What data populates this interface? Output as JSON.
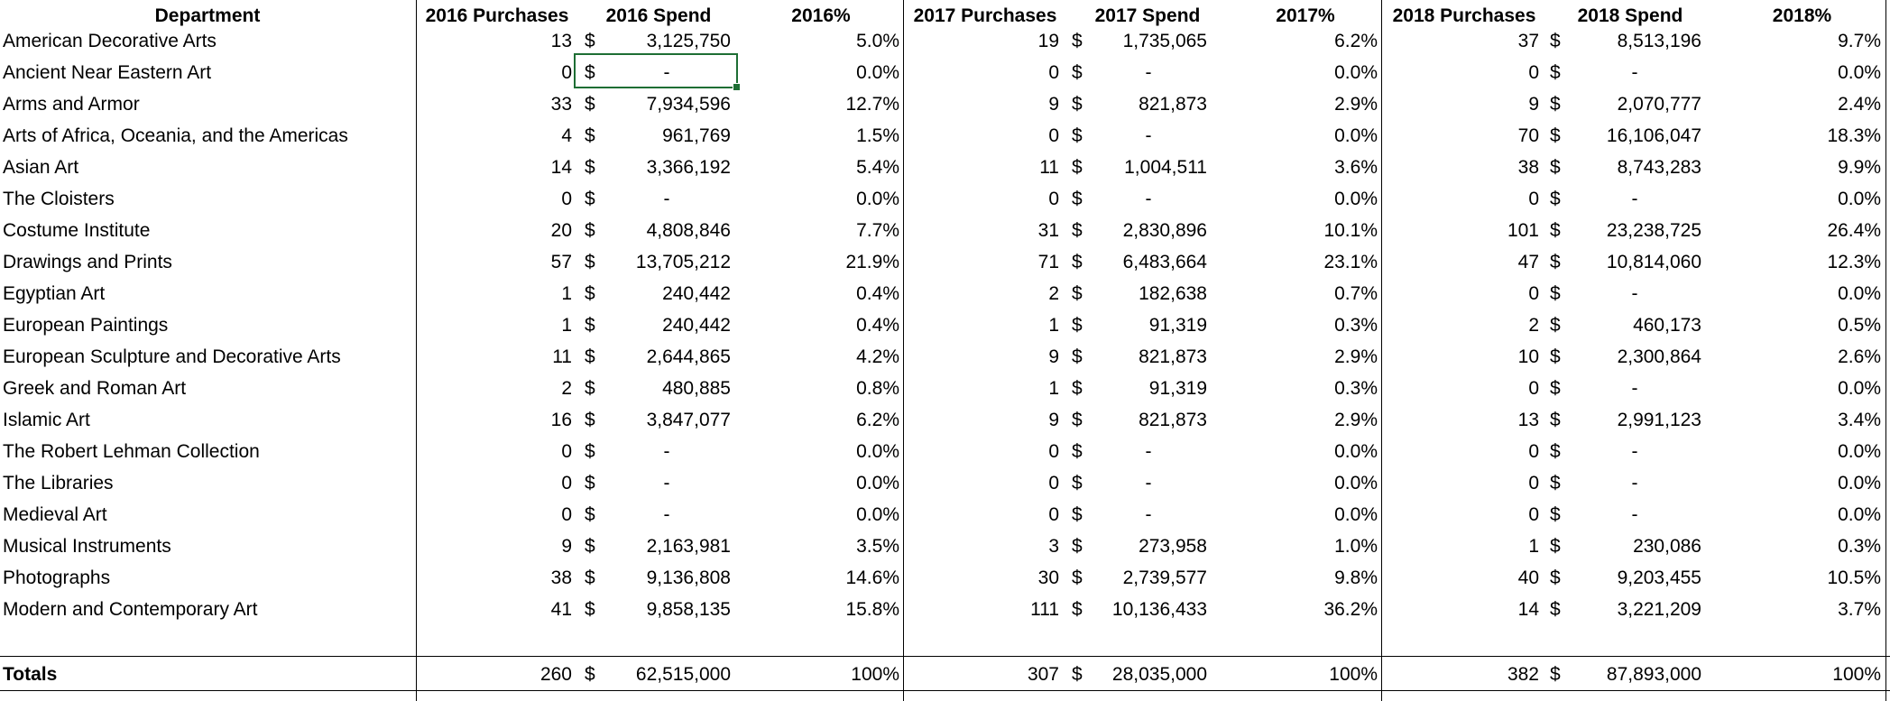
{
  "headers": {
    "department": "Department",
    "y2016_purchases": "2016 Purchases",
    "y2016_spend": "2016 Spend",
    "y2016_pct": "2016%",
    "y2017_purchases": "2017 Purchases",
    "y2017_spend": "2017 Spend",
    "y2017_pct": "2017%",
    "y2018_purchases": "2018 Purchases",
    "y2018_spend": "2018 Spend",
    "y2018_pct": "2018%"
  },
  "currency_symbol": "$",
  "rows": [
    {
      "dept": "American Decorative Arts",
      "p2016": "13",
      "s2016": "3,125,750",
      "pc2016": "5.0%",
      "p2017": "19",
      "s2017": "1,735,065",
      "pc2017": "6.2%",
      "p2018": "37",
      "s2018": "8,513,196",
      "pc2018": "9.7%"
    },
    {
      "dept": "Ancient Near Eastern Art",
      "p2016": "0",
      "s2016": "-",
      "pc2016": "0.0%",
      "p2017": "0",
      "s2017": "-",
      "pc2017": "0.0%",
      "p2018": "0",
      "s2018": "-",
      "pc2018": "0.0%"
    },
    {
      "dept": "Arms and Armor",
      "p2016": "33",
      "s2016": "7,934,596",
      "pc2016": "12.7%",
      "p2017": "9",
      "s2017": "821,873",
      "pc2017": "2.9%",
      "p2018": "9",
      "s2018": "2,070,777",
      "pc2018": "2.4%"
    },
    {
      "dept": "Arts of Africa, Oceania, and the Americas",
      "p2016": "4",
      "s2016": "961,769",
      "pc2016": "1.5%",
      "p2017": "0",
      "s2017": "-",
      "pc2017": "0.0%",
      "p2018": "70",
      "s2018": "16,106,047",
      "pc2018": "18.3%"
    },
    {
      "dept": "Asian Art",
      "p2016": "14",
      "s2016": "3,366,192",
      "pc2016": "5.4%",
      "p2017": "11",
      "s2017": "1,004,511",
      "pc2017": "3.6%",
      "p2018": "38",
      "s2018": "8,743,283",
      "pc2018": "9.9%"
    },
    {
      "dept": "The Cloisters",
      "p2016": "0",
      "s2016": "-",
      "pc2016": "0.0%",
      "p2017": "0",
      "s2017": "-",
      "pc2017": "0.0%",
      "p2018": "0",
      "s2018": "-",
      "pc2018": "0.0%"
    },
    {
      "dept": "Costume Institute",
      "p2016": "20",
      "s2016": "4,808,846",
      "pc2016": "7.7%",
      "p2017": "31",
      "s2017": "2,830,896",
      "pc2017": "10.1%",
      "p2018": "101",
      "s2018": "23,238,725",
      "pc2018": "26.4%"
    },
    {
      "dept": "Drawings and Prints",
      "p2016": "57",
      "s2016": "13,705,212",
      "pc2016": "21.9%",
      "p2017": "71",
      "s2017": "6,483,664",
      "pc2017": "23.1%",
      "p2018": "47",
      "s2018": "10,814,060",
      "pc2018": "12.3%"
    },
    {
      "dept": "Egyptian Art",
      "p2016": "1",
      "s2016": "240,442",
      "pc2016": "0.4%",
      "p2017": "2",
      "s2017": "182,638",
      "pc2017": "0.7%",
      "p2018": "0",
      "s2018": "-",
      "pc2018": "0.0%"
    },
    {
      "dept": "European Paintings",
      "p2016": "1",
      "s2016": "240,442",
      "pc2016": "0.4%",
      "p2017": "1",
      "s2017": "91,319",
      "pc2017": "0.3%",
      "p2018": "2",
      "s2018": "460,173",
      "pc2018": "0.5%"
    },
    {
      "dept": "European Sculpture and Decorative Arts",
      "p2016": "11",
      "s2016": "2,644,865",
      "pc2016": "4.2%",
      "p2017": "9",
      "s2017": "821,873",
      "pc2017": "2.9%",
      "p2018": "10",
      "s2018": "2,300,864",
      "pc2018": "2.6%"
    },
    {
      "dept": "Greek and Roman Art",
      "p2016": "2",
      "s2016": "480,885",
      "pc2016": "0.8%",
      "p2017": "1",
      "s2017": "91,319",
      "pc2017": "0.3%",
      "p2018": "0",
      "s2018": "-",
      "pc2018": "0.0%"
    },
    {
      "dept": "Islamic Art",
      "p2016": "16",
      "s2016": "3,847,077",
      "pc2016": "6.2%",
      "p2017": "9",
      "s2017": "821,873",
      "pc2017": "2.9%",
      "p2018": "13",
      "s2018": "2,991,123",
      "pc2018": "3.4%"
    },
    {
      "dept": "The Robert Lehman Collection",
      "p2016": "0",
      "s2016": "-",
      "pc2016": "0.0%",
      "p2017": "0",
      "s2017": "-",
      "pc2017": "0.0%",
      "p2018": "0",
      "s2018": "-",
      "pc2018": "0.0%"
    },
    {
      "dept": "The Libraries",
      "p2016": "0",
      "s2016": "-",
      "pc2016": "0.0%",
      "p2017": "0",
      "s2017": "-",
      "pc2017": "0.0%",
      "p2018": "0",
      "s2018": "-",
      "pc2018": "0.0%"
    },
    {
      "dept": "Medieval Art",
      "p2016": "0",
      "s2016": "-",
      "pc2016": "0.0%",
      "p2017": "0",
      "s2017": "-",
      "pc2017": "0.0%",
      "p2018": "0",
      "s2018": "-",
      "pc2018": "0.0%"
    },
    {
      "dept": "Musical Instruments",
      "p2016": "9",
      "s2016": "2,163,981",
      "pc2016": "3.5%",
      "p2017": "3",
      "s2017": "273,958",
      "pc2017": "1.0%",
      "p2018": "1",
      "s2018": "230,086",
      "pc2018": "0.3%"
    },
    {
      "dept": "Photographs",
      "p2016": "38",
      "s2016": "9,136,808",
      "pc2016": "14.6%",
      "p2017": "30",
      "s2017": "2,739,577",
      "pc2017": "9.8%",
      "p2018": "40",
      "s2018": "9,203,455",
      "pc2018": "10.5%"
    },
    {
      "dept": "Modern and Contemporary Art",
      "p2016": "41",
      "s2016": "9,858,135",
      "pc2016": "15.8%",
      "p2017": "111",
      "s2017": "10,136,433",
      "pc2017": "36.2%",
      "p2018": "14",
      "s2018": "3,221,209",
      "pc2018": "3.7%"
    }
  ],
  "totals": {
    "label": "Totals",
    "p2016": "260",
    "s2016": "62,515,000",
    "pc2016": "100%",
    "p2017": "307",
    "s2017": "28,035,000",
    "pc2017": "100%",
    "p2018": "382",
    "s2018": "87,893,000",
    "pc2018": "100%"
  },
  "selection": {
    "row_index": 1,
    "column": "s2016"
  },
  "colors": {
    "selection_border": "#1e6e34",
    "gridline": "#000000"
  }
}
